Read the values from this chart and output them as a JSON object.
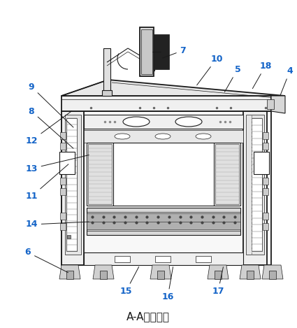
{
  "title": "A-A向剖视图",
  "title_fontsize": 11,
  "line_color": "#1a1a1a",
  "label_color": "#1464c8",
  "bg_color": "#ffffff"
}
